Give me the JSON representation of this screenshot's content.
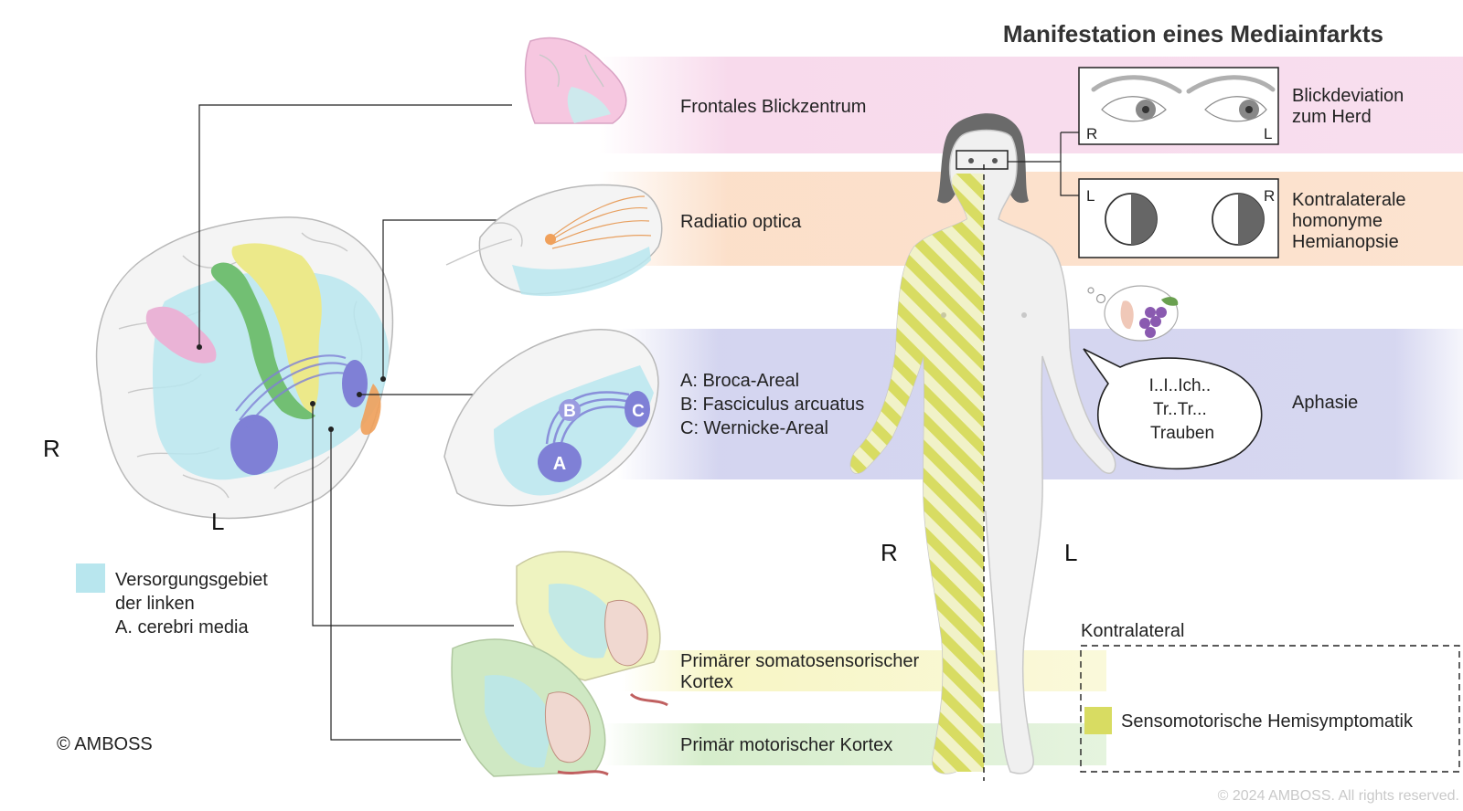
{
  "title": "Manifestation eines Mediainfarkts",
  "brain": {
    "side_right": "R",
    "side_left": "L",
    "legend_label_lines": [
      "Versorgungsgebiet",
      "der linken",
      "A. cerebri media"
    ],
    "legend_color": "#b8e6ee"
  },
  "copyright": "© AMBOSS",
  "footer": "© 2024 AMBOSS. All rights reserved.",
  "regions": [
    {
      "id": "frontal",
      "lines": [
        "Frontales Blickzentrum"
      ],
      "color": "#f7d6ea"
    },
    {
      "id": "optic",
      "lines": [
        "Radiatio optica"
      ],
      "color": "#fbdcc4"
    },
    {
      "id": "language",
      "lines": [
        "A: Broca-Areal",
        "B: Fasciculus arcuatus",
        "C: Wernicke-Areal"
      ],
      "color": "#cfd0ee"
    },
    {
      "id": "sensory",
      "lines": [
        "Primärer somatosensorischer",
        "Kortex"
      ],
      "color": "#f7f5c2"
    },
    {
      "id": "motor",
      "lines": [
        "Primär motorischer Kortex"
      ],
      "color": "#d4ecc9"
    }
  ],
  "slice_markers": {
    "a": "A",
    "b": "B",
    "c": "C"
  },
  "body": {
    "side_right": "R",
    "side_left": "L"
  },
  "symptoms": {
    "gaze": {
      "lines": [
        "Blickdeviation",
        "zum Herd"
      ],
      "eye_right": "R",
      "eye_left": "L"
    },
    "hemianopsia": {
      "lines": [
        "Kontralaterale",
        "homonyme",
        "Hemianopsie"
      ],
      "field_left": "L",
      "field_right": "R"
    },
    "aphasia": {
      "label": "Aphasie",
      "speech_lines": [
        "I..I..Ich..",
        "Tr..Tr...",
        "Trauben"
      ]
    },
    "contralateral": {
      "heading": "Kontralateral",
      "item": "Sensomotorische Hemisymptomatik",
      "swatch": "#d8dc62"
    }
  },
  "colors": {
    "mca_area": "#b8e6ee",
    "frontal_eye_field": "#eab3d6",
    "optic": "#f0a05a",
    "language": "#7f80d6",
    "sensory": "#ece98a",
    "motor": "#72bf73",
    "affected_side": "#d8dc62"
  }
}
